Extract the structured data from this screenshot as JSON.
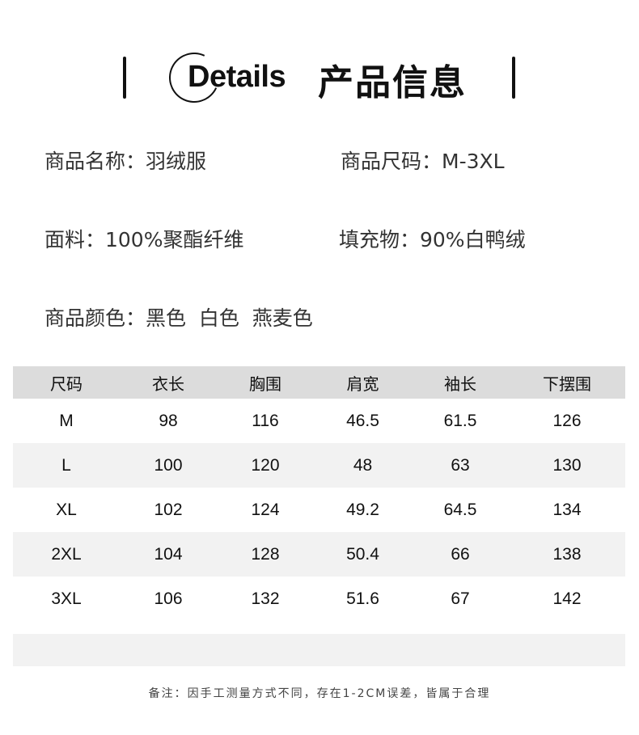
{
  "header": {
    "title_en": "Details",
    "title_cn": "产品信息"
  },
  "info": {
    "name": "商品名称：羽绒服",
    "size": "商品尺码：M-3XL",
    "fabric": "面料：100%聚酯纤维",
    "filling": "填充物：90%白鸭绒",
    "colors": "商品颜色：黑色  白色  燕麦色"
  },
  "table": {
    "headers": [
      "尺码",
      "衣长",
      "胸围",
      "肩宽",
      "袖长",
      "下摆围"
    ],
    "rows": [
      [
        "M",
        "98",
        "116",
        "46.5",
        "61.5",
        "126"
      ],
      [
        "L",
        "100",
        "120",
        "48",
        "63",
        "130"
      ],
      [
        "XL",
        "102",
        "124",
        "49.2",
        "64.5",
        "134"
      ],
      [
        "2XL",
        "104",
        "128",
        "50.4",
        "66",
        "138"
      ],
      [
        "3XL",
        "106",
        "132",
        "51.6",
        "67",
        "142"
      ]
    ]
  },
  "note": "备注：因手工测量方式不同，存在1-2CM误差，皆属于合理",
  "colors": {
    "header_bg": "#dcdcdc",
    "stripe_bg": "#f2f2f2"
  }
}
